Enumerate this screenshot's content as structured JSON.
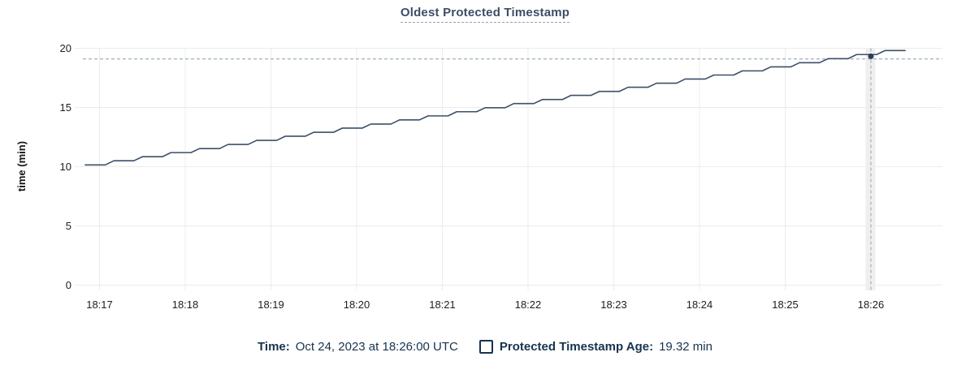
{
  "title": "Oldest Protected Timestamp",
  "colors": {
    "title": "#3e4d66",
    "line": "#3c4f68",
    "highlight_point": "#2b3e56",
    "gridline": "#ececec",
    "crosshair": "#9db3bf",
    "legend_text": "#17334e"
  },
  "chart_data": {
    "type": "line",
    "title": "Oldest Protected Timestamp",
    "xlabel": "",
    "ylabel": "time (min)",
    "ylim": [
      0,
      20
    ],
    "y_ticks": [
      0,
      5,
      10,
      15,
      20
    ],
    "x_ticks": [
      "18:17",
      "18:18",
      "18:19",
      "18:20",
      "18:21",
      "18:22",
      "18:23",
      "18:24",
      "18:25",
      "18:26"
    ],
    "x_range": [
      "18:16:48",
      "18:26:47"
    ],
    "grid": true,
    "legend_position": "bottom",
    "series": [
      {
        "name": "Protected Timestamp Age",
        "unit": "min",
        "hold_seconds": 14,
        "steps": [
          [
            "18:16:50",
            10.15
          ],
          [
            "18:17:10",
            10.5
          ],
          [
            "18:17:30",
            10.84
          ],
          [
            "18:17:50",
            11.19
          ],
          [
            "18:18:10",
            11.53
          ],
          [
            "18:18:30",
            11.88
          ],
          [
            "18:18:50",
            12.22
          ],
          [
            "18:19:10",
            12.57
          ],
          [
            "18:19:30",
            12.91
          ],
          [
            "18:19:50",
            13.26
          ],
          [
            "18:20:10",
            13.6
          ],
          [
            "18:20:30",
            13.95
          ],
          [
            "18:20:50",
            14.29
          ],
          [
            "18:21:10",
            14.64
          ],
          [
            "18:21:30",
            14.98
          ],
          [
            "18:21:50",
            15.33
          ],
          [
            "18:22:10",
            15.67
          ],
          [
            "18:22:30",
            16.02
          ],
          [
            "18:22:50",
            16.36
          ],
          [
            "18:23:10",
            16.71
          ],
          [
            "18:23:30",
            17.05
          ],
          [
            "18:23:50",
            17.4
          ],
          [
            "18:24:10",
            17.74
          ],
          [
            "18:24:30",
            18.09
          ],
          [
            "18:24:50",
            18.43
          ],
          [
            "18:25:10",
            18.78
          ],
          [
            "18:25:30",
            19.12
          ],
          [
            "18:25:50",
            19.47
          ],
          [
            "18:26:10",
            19.81
          ]
        ]
      }
    ],
    "highlight": {
      "time": "18:26:00",
      "value": 19.32,
      "tracker_line_value": 19.1
    }
  },
  "legend": {
    "time_label": "Time:",
    "time_value": "Oct 24, 2023 at 18:26:00 UTC",
    "series_label": "Protected Timestamp Age:",
    "series_value": "19.32 min"
  }
}
